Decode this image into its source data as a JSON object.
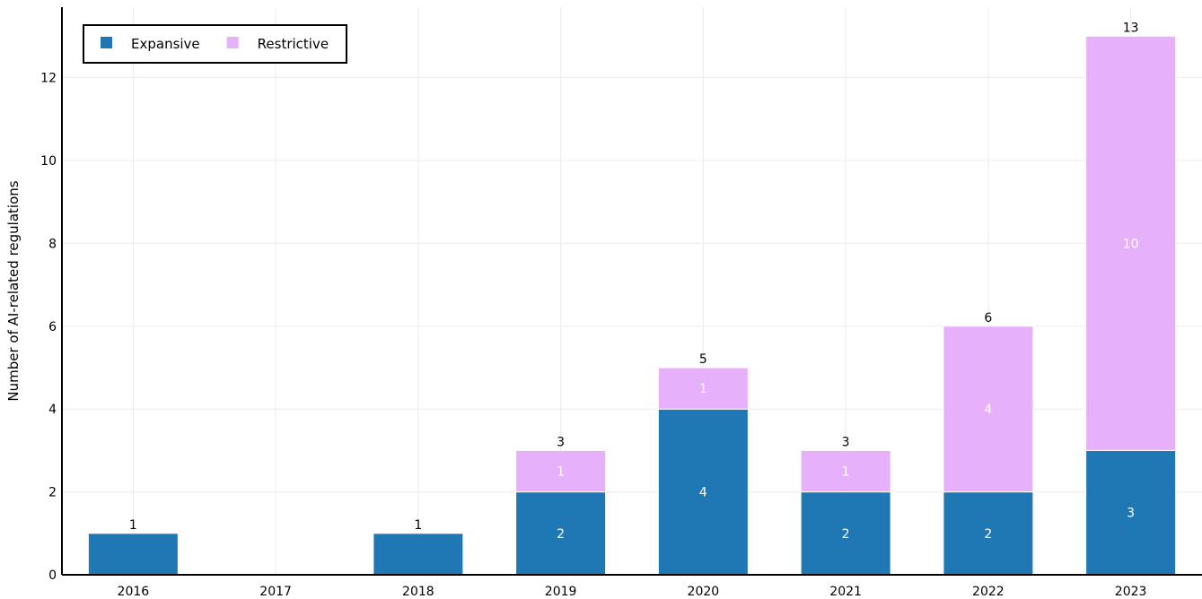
{
  "chart_data": {
    "type": "bar",
    "stacked": true,
    "title": "",
    "xlabel": "",
    "ylabel": "Number of AI-related regulations",
    "categories": [
      "2016",
      "2017",
      "2018",
      "2019",
      "2020",
      "2021",
      "2022",
      "2023"
    ],
    "series": [
      {
        "name": "Expansive",
        "color": "#1f77b4",
        "values": [
          1,
          0,
          1,
          2,
          4,
          2,
          2,
          3
        ]
      },
      {
        "name": "Restrictive",
        "color": "#e6b0fa",
        "values": [
          0,
          0,
          0,
          1,
          1,
          1,
          4,
          10
        ]
      }
    ],
    "totals": [
      1,
      null,
      1,
      3,
      5,
      3,
      6,
      13
    ],
    "ylim": [
      0,
      13.7
    ],
    "yticks": [
      0,
      2,
      4,
      6,
      8,
      10,
      12
    ],
    "grid": true,
    "legend_position": "top-left"
  }
}
